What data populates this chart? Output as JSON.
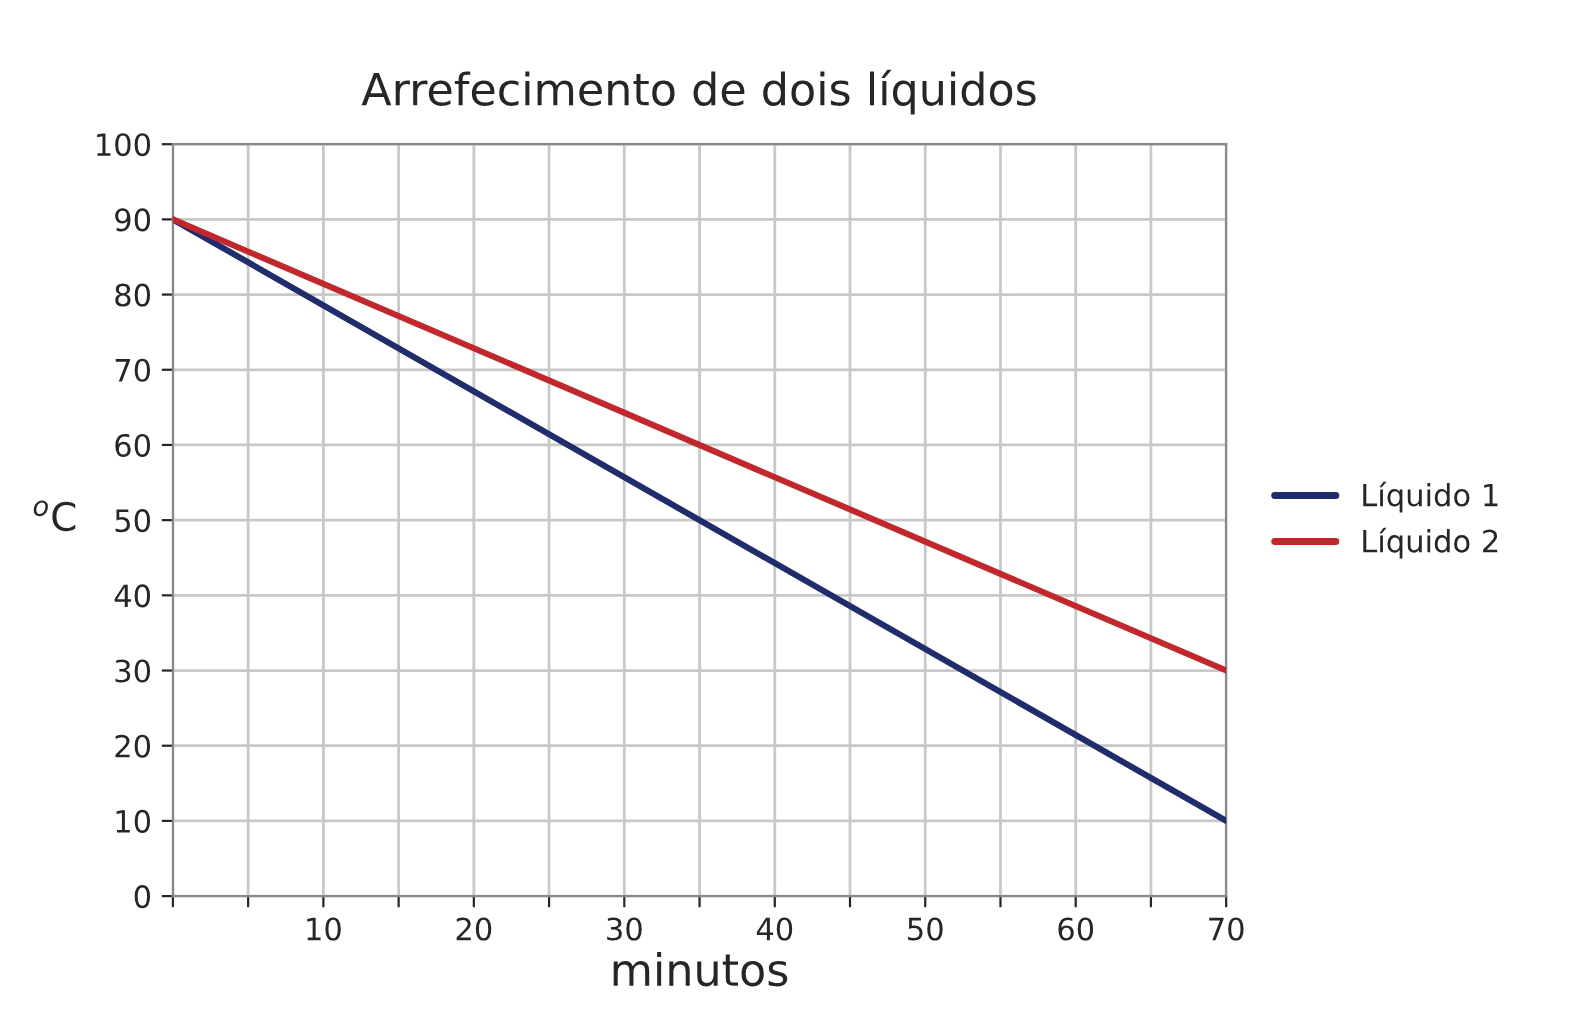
{
  "chart_data": {
    "type": "line",
    "title": "Arrefecimento de dois líquidos",
    "xlabel": "minutos",
    "ylabel": "$^{o}$C",
    "x": [
      0,
      70
    ],
    "series": [
      {
        "name": "Líquido 1",
        "color": "#1f2d6b",
        "values": [
          90,
          10
        ]
      },
      {
        "name": "Líquido 2",
        "color": "#c0282d",
        "values": [
          90,
          30
        ]
      }
    ],
    "xlim": [
      0,
      70
    ],
    "ylim": [
      0,
      100
    ],
    "xticks": [
      {
        "value": 0,
        "label": null
      },
      {
        "value": 5,
        "label": null
      },
      10,
      {
        "value": 15,
        "label": null
      },
      20,
      {
        "value": 25,
        "label": null
      },
      30,
      {
        "value": 35,
        "label": null
      },
      40,
      {
        "value": 45,
        "label": null
      },
      50,
      {
        "value": 55,
        "label": null
      },
      60,
      {
        "value": 65,
        "label": null
      },
      70
    ],
    "yticks": [
      0,
      10,
      20,
      30,
      40,
      50,
      60,
      70,
      80,
      90,
      100
    ],
    "grid": true,
    "legend": "right",
    "marker": "none",
    "line_style": "solid"
  }
}
